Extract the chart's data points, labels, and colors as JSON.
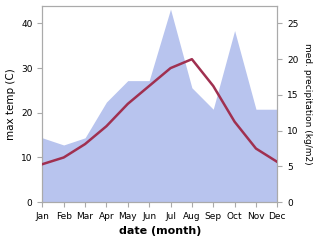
{
  "months": [
    "Jan",
    "Feb",
    "Mar",
    "Apr",
    "May",
    "Jun",
    "Jul",
    "Aug",
    "Sep",
    "Oct",
    "Nov",
    "Dec"
  ],
  "month_indices": [
    1,
    2,
    3,
    4,
    5,
    6,
    7,
    8,
    9,
    10,
    11,
    12
  ],
  "temperature": [
    8.5,
    10,
    13,
    17,
    22,
    26,
    30,
    32,
    26,
    18,
    12,
    9
  ],
  "precipitation": [
    9,
    8,
    9,
    14,
    17,
    17,
    27,
    16,
    13,
    24,
    13,
    13
  ],
  "temp_color": "#a03050",
  "precip_fill_color": "#b8c4ee",
  "ylim_temp": [
    0,
    44
  ],
  "ylim_precip": [
    0,
    27.5
  ],
  "ylabel_left": "max temp (C)",
  "ylabel_right": "med. precipitation (kg/m2)",
  "xlabel": "date (month)",
  "yticks_left": [
    0,
    10,
    20,
    30,
    40
  ],
  "yticks_right": [
    0,
    5,
    10,
    15,
    20,
    25
  ],
  "background_color": "#ffffff",
  "figsize": [
    3.18,
    2.42
  ],
  "dpi": 100,
  "spine_color": "#aaaaaa",
  "tick_labelsize": 6.5,
  "ylabel_left_fontsize": 7.5,
  "ylabel_right_fontsize": 6.5,
  "xlabel_fontsize": 8,
  "line_width": 1.8
}
